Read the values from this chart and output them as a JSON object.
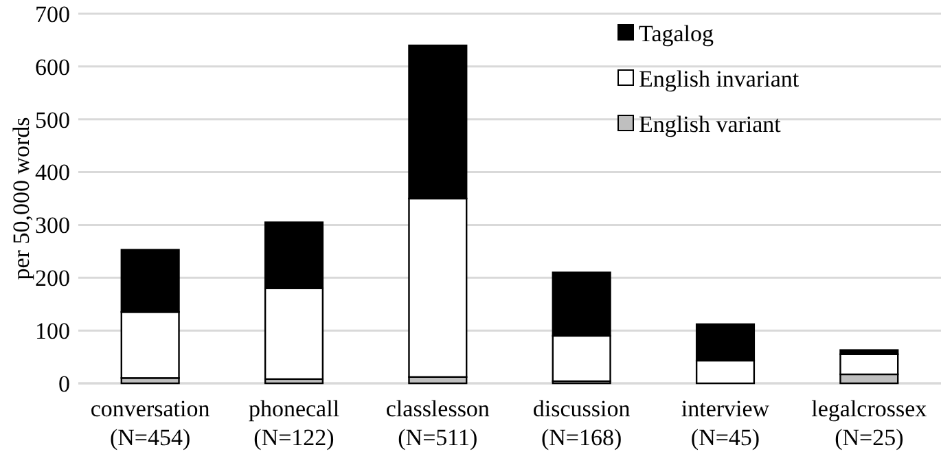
{
  "chart_data": {
    "type": "bar",
    "stacked": true,
    "ylabel": "per 50,000 words",
    "categories": [
      "conversation\n(N=454)",
      "phonecall\n(N=122)",
      "classlesson\n(N=511)",
      "discussion\n(N=168)",
      "interview\n(N=45)",
      "legalcrossex\n(N=25)"
    ],
    "series": [
      {
        "name": "English variant",
        "color": "#bfbfbf",
        "values": [
          10,
          8,
          12,
          4,
          null,
          17
        ]
      },
      {
        "name": "English invariant",
        "color": "#ffffff",
        "values": [
          125,
          172,
          338,
          86,
          43,
          38
        ]
      },
      {
        "name": "Tagalog",
        "color": "#000000",
        "values": [
          118,
          125,
          290,
          120,
          69,
          8
        ]
      }
    ],
    "ylim": [
      0,
      700
    ],
    "yticks": [
      0,
      100,
      200,
      300,
      400,
      500,
      600,
      700
    ],
    "grid": "y",
    "legend": "top right"
  }
}
